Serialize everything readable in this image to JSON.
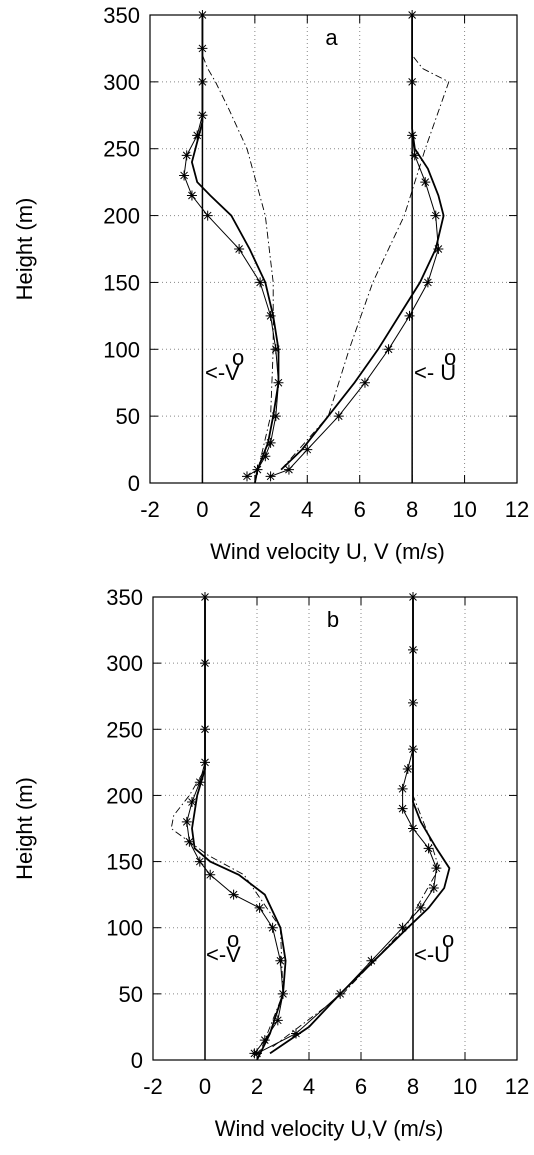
{
  "chart_data": [
    {
      "type": "line",
      "title": "a",
      "x_label": "Wind velocity U, V (m/s)",
      "y_label": "Height (m)",
      "xlim": [
        -2,
        12
      ],
      "ylim": [
        0,
        350
      ],
      "xticks": [
        -2,
        0,
        2,
        4,
        6,
        8,
        10,
        12
      ],
      "yticks": [
        0,
        50,
        100,
        150,
        200,
        250,
        300,
        350
      ],
      "grid": true,
      "vlines": [
        0,
        8
      ],
      "annotations": [
        {
          "text": "<-V",
          "sup": "o"
        },
        {
          "text": "<- U",
          "sup": "o"
        }
      ],
      "series": [
        {
          "color": "#000000",
          "style": "star",
          "x": [
            1.7,
            2.1,
            2.4,
            2.6,
            2.8,
            2.9,
            2.8,
            2.6,
            2.2,
            1.4,
            0.2,
            -0.4,
            -0.7,
            -0.6,
            -0.2,
            0,
            0,
            0,
            0
          ],
          "y": [
            5,
            10,
            20,
            30,
            50,
            75,
            100,
            125,
            150,
            175,
            200,
            215,
            230,
            245,
            260,
            275,
            300,
            325,
            350
          ]
        },
        {
          "color": "#000000",
          "style": "solid",
          "x": [
            2.0,
            2.1,
            2.5,
            2.7,
            2.9,
            2.9,
            2.7,
            2.4,
            1.8,
            1.1,
            0.3,
            -0.2,
            -0.4,
            -0.2,
            0,
            0,
            0
          ],
          "y": [
            0,
            10,
            30,
            50,
            75,
            100,
            125,
            150,
            175,
            200,
            215,
            225,
            240,
            255,
            270,
            300,
            350
          ]
        },
        {
          "color": "#000000",
          "style": "dashdot",
          "x": [
            2.0,
            2.6,
            2.7,
            2.7,
            2.4,
            1.7,
            1.0,
            0.5,
            0.2,
            0,
            0
          ],
          "y": [
            0,
            50,
            100,
            150,
            200,
            250,
            280,
            300,
            310,
            320,
            350
          ]
        },
        {
          "color": "#000000",
          "style": "star",
          "x": [
            2.6,
            3.3,
            4.0,
            5.2,
            6.2,
            7.1,
            7.9,
            8.6,
            9.0,
            8.9,
            8.5,
            8.1,
            8.0,
            8.0,
            8.0
          ],
          "y": [
            5,
            10,
            25,
            50,
            75,
            100,
            125,
            150,
            175,
            200,
            225,
            245,
            260,
            300,
            350
          ]
        },
        {
          "color": "#000000",
          "style": "solid",
          "x": [
            3.0,
            3.8,
            4.8,
            5.8,
            6.7,
            7.5,
            8.3,
            8.9,
            9.2,
            9.0,
            8.6,
            8.1,
            8.0,
            8.0
          ],
          "y": [
            10,
            25,
            50,
            75,
            100,
            125,
            150,
            175,
            200,
            215,
            235,
            250,
            265,
            350
          ]
        },
        {
          "color": "#000000",
          "style": "dashdot",
          "x": [
            3.0,
            4.8,
            5.6,
            6.5,
            7.7,
            8.5,
            9.4,
            8.4,
            8.0,
            8.0
          ],
          "y": [
            10,
            50,
            100,
            150,
            200,
            250,
            300,
            310,
            320,
            350
          ]
        }
      ]
    },
    {
      "type": "line",
      "title": "b",
      "x_label": "Wind velocity U,V (m/s)",
      "y_label": "Height (m)",
      "xlim": [
        -2,
        12
      ],
      "ylim": [
        0,
        350
      ],
      "xticks": [
        -2,
        0,
        2,
        4,
        6,
        8,
        10,
        12
      ],
      "yticks": [
        0,
        50,
        100,
        150,
        200,
        250,
        300,
        350
      ],
      "grid": true,
      "vlines": [
        0,
        8
      ],
      "annotations": [
        {
          "text": "<-V",
          "sup": "o"
        },
        {
          "text": "<-U",
          "sup": "o"
        }
      ],
      "series": [
        {
          "color": "#000000",
          "style": "star",
          "x": [
            1.9,
            2.3,
            2.8,
            3.0,
            2.9,
            2.6,
            2.1,
            1.1,
            0.2,
            -0.2,
            -0.6,
            -0.7,
            -0.5,
            -0.2,
            0,
            0,
            0,
            0
          ],
          "y": [
            5,
            15,
            30,
            50,
            75,
            100,
            115,
            125,
            140,
            150,
            165,
            180,
            195,
            210,
            225,
            250,
            300,
            350
          ]
        },
        {
          "color": "#000000",
          "style": "solid",
          "x": [
            2.0,
            2.5,
            3.0,
            3.1,
            2.9,
            2.3,
            1.3,
            0.2,
            -0.4,
            -0.5,
            -0.3,
            0,
            0
          ],
          "y": [
            0,
            20,
            50,
            75,
            100,
            125,
            140,
            150,
            160,
            175,
            200,
            220,
            350
          ]
        },
        {
          "color": "#000000",
          "style": "dashdot",
          "x": [
            2.0,
            3.0,
            2.9,
            1.5,
            0.1,
            -1.3,
            -1.2,
            -0.6,
            0,
            0
          ],
          "y": [
            0,
            50,
            100,
            140,
            155,
            175,
            185,
            200,
            220,
            350
          ]
        },
        {
          "color": "#000000",
          "style": "star",
          "x": [
            2.0,
            3.5,
            5.2,
            6.4,
            7.6,
            8.3,
            8.8,
            8.9,
            8.6,
            8.0,
            7.6,
            7.6,
            7.8,
            8.0,
            8.0,
            8.0,
            8.0
          ],
          "y": [
            5,
            20,
            50,
            75,
            100,
            115,
            130,
            145,
            160,
            175,
            190,
            205,
            220,
            235,
            270,
            310,
            350
          ]
        },
        {
          "color": "#000000",
          "style": "solid",
          "x": [
            2.5,
            4.0,
            5.2,
            6.5,
            7.8,
            8.6,
            9.2,
            9.4,
            8.9,
            8.3,
            8.0,
            8.0
          ],
          "y": [
            5,
            25,
            50,
            75,
            100,
            115,
            130,
            145,
            160,
            180,
            195,
            350
          ]
        },
        {
          "color": "#000000",
          "style": "dashdot",
          "x": [
            2.6,
            5.3,
            7.7,
            9.0,
            8.6,
            8.2,
            8.0,
            8.0
          ],
          "y": [
            10,
            50,
            100,
            145,
            170,
            190,
            200,
            350
          ]
        }
      ]
    }
  ]
}
